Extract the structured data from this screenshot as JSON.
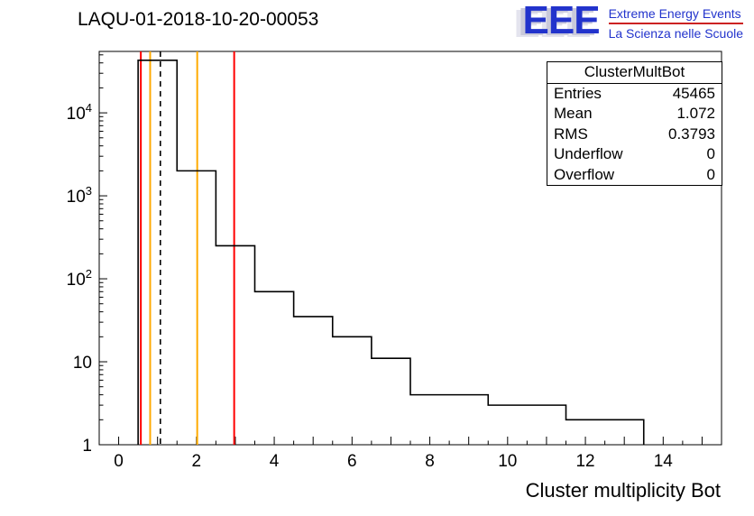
{
  "title": "LAQU-01-2018-10-20-00053",
  "logo": {
    "eee": "EEE",
    "line1": "Extreme Energy Events",
    "line2": "La Scienza nelle Scuole",
    "text_color": "#2233cc",
    "accent_color": "#cc2222"
  },
  "stats_box": {
    "title": "ClusterMultBot",
    "rows": [
      {
        "label": "Entries",
        "value": "45465"
      },
      {
        "label": "Mean",
        "value": "1.072"
      },
      {
        "label": "RMS",
        "value": "0.3793"
      },
      {
        "label": "Underflow",
        "value": "0"
      },
      {
        "label": "Overflow",
        "value": "0"
      }
    ]
  },
  "chart_data": {
    "type": "bar",
    "style": "step-histogram",
    "title": "LAQU-01-2018-10-20-00053",
    "xlabel": "Cluster multiplicity Bot",
    "ylabel": "",
    "y_scale": "log",
    "grid": false,
    "x_range": [
      -0.5,
      15.5
    ],
    "y_range": [
      1,
      55000
    ],
    "x_major_tick_labels": [
      0,
      2,
      4,
      6,
      8,
      10,
      12,
      14
    ],
    "y_major_tick_labels": [
      "1",
      "10",
      "10^2",
      "10^3",
      "10^4"
    ],
    "bin_edges": [
      0.5,
      1.5,
      2.5,
      3.5,
      4.5,
      5.5,
      6.5,
      7.5,
      9.5,
      11.5,
      13.5
    ],
    "counts": [
      43070,
      2000,
      250,
      70,
      35,
      20,
      11,
      4,
      3,
      2
    ],
    "line_color": "#000000",
    "marker_lines": [
      {
        "x": 0.57,
        "color": "#ff0000",
        "style": "solid"
      },
      {
        "x": 0.81,
        "color": "#ffaa00",
        "style": "solid"
      },
      {
        "x": 1.072,
        "color": "#000000",
        "style": "dashed"
      },
      {
        "x": 2.02,
        "color": "#ffaa00",
        "style": "solid"
      },
      {
        "x": 2.97,
        "color": "#ff0000",
        "style": "solid"
      }
    ]
  }
}
